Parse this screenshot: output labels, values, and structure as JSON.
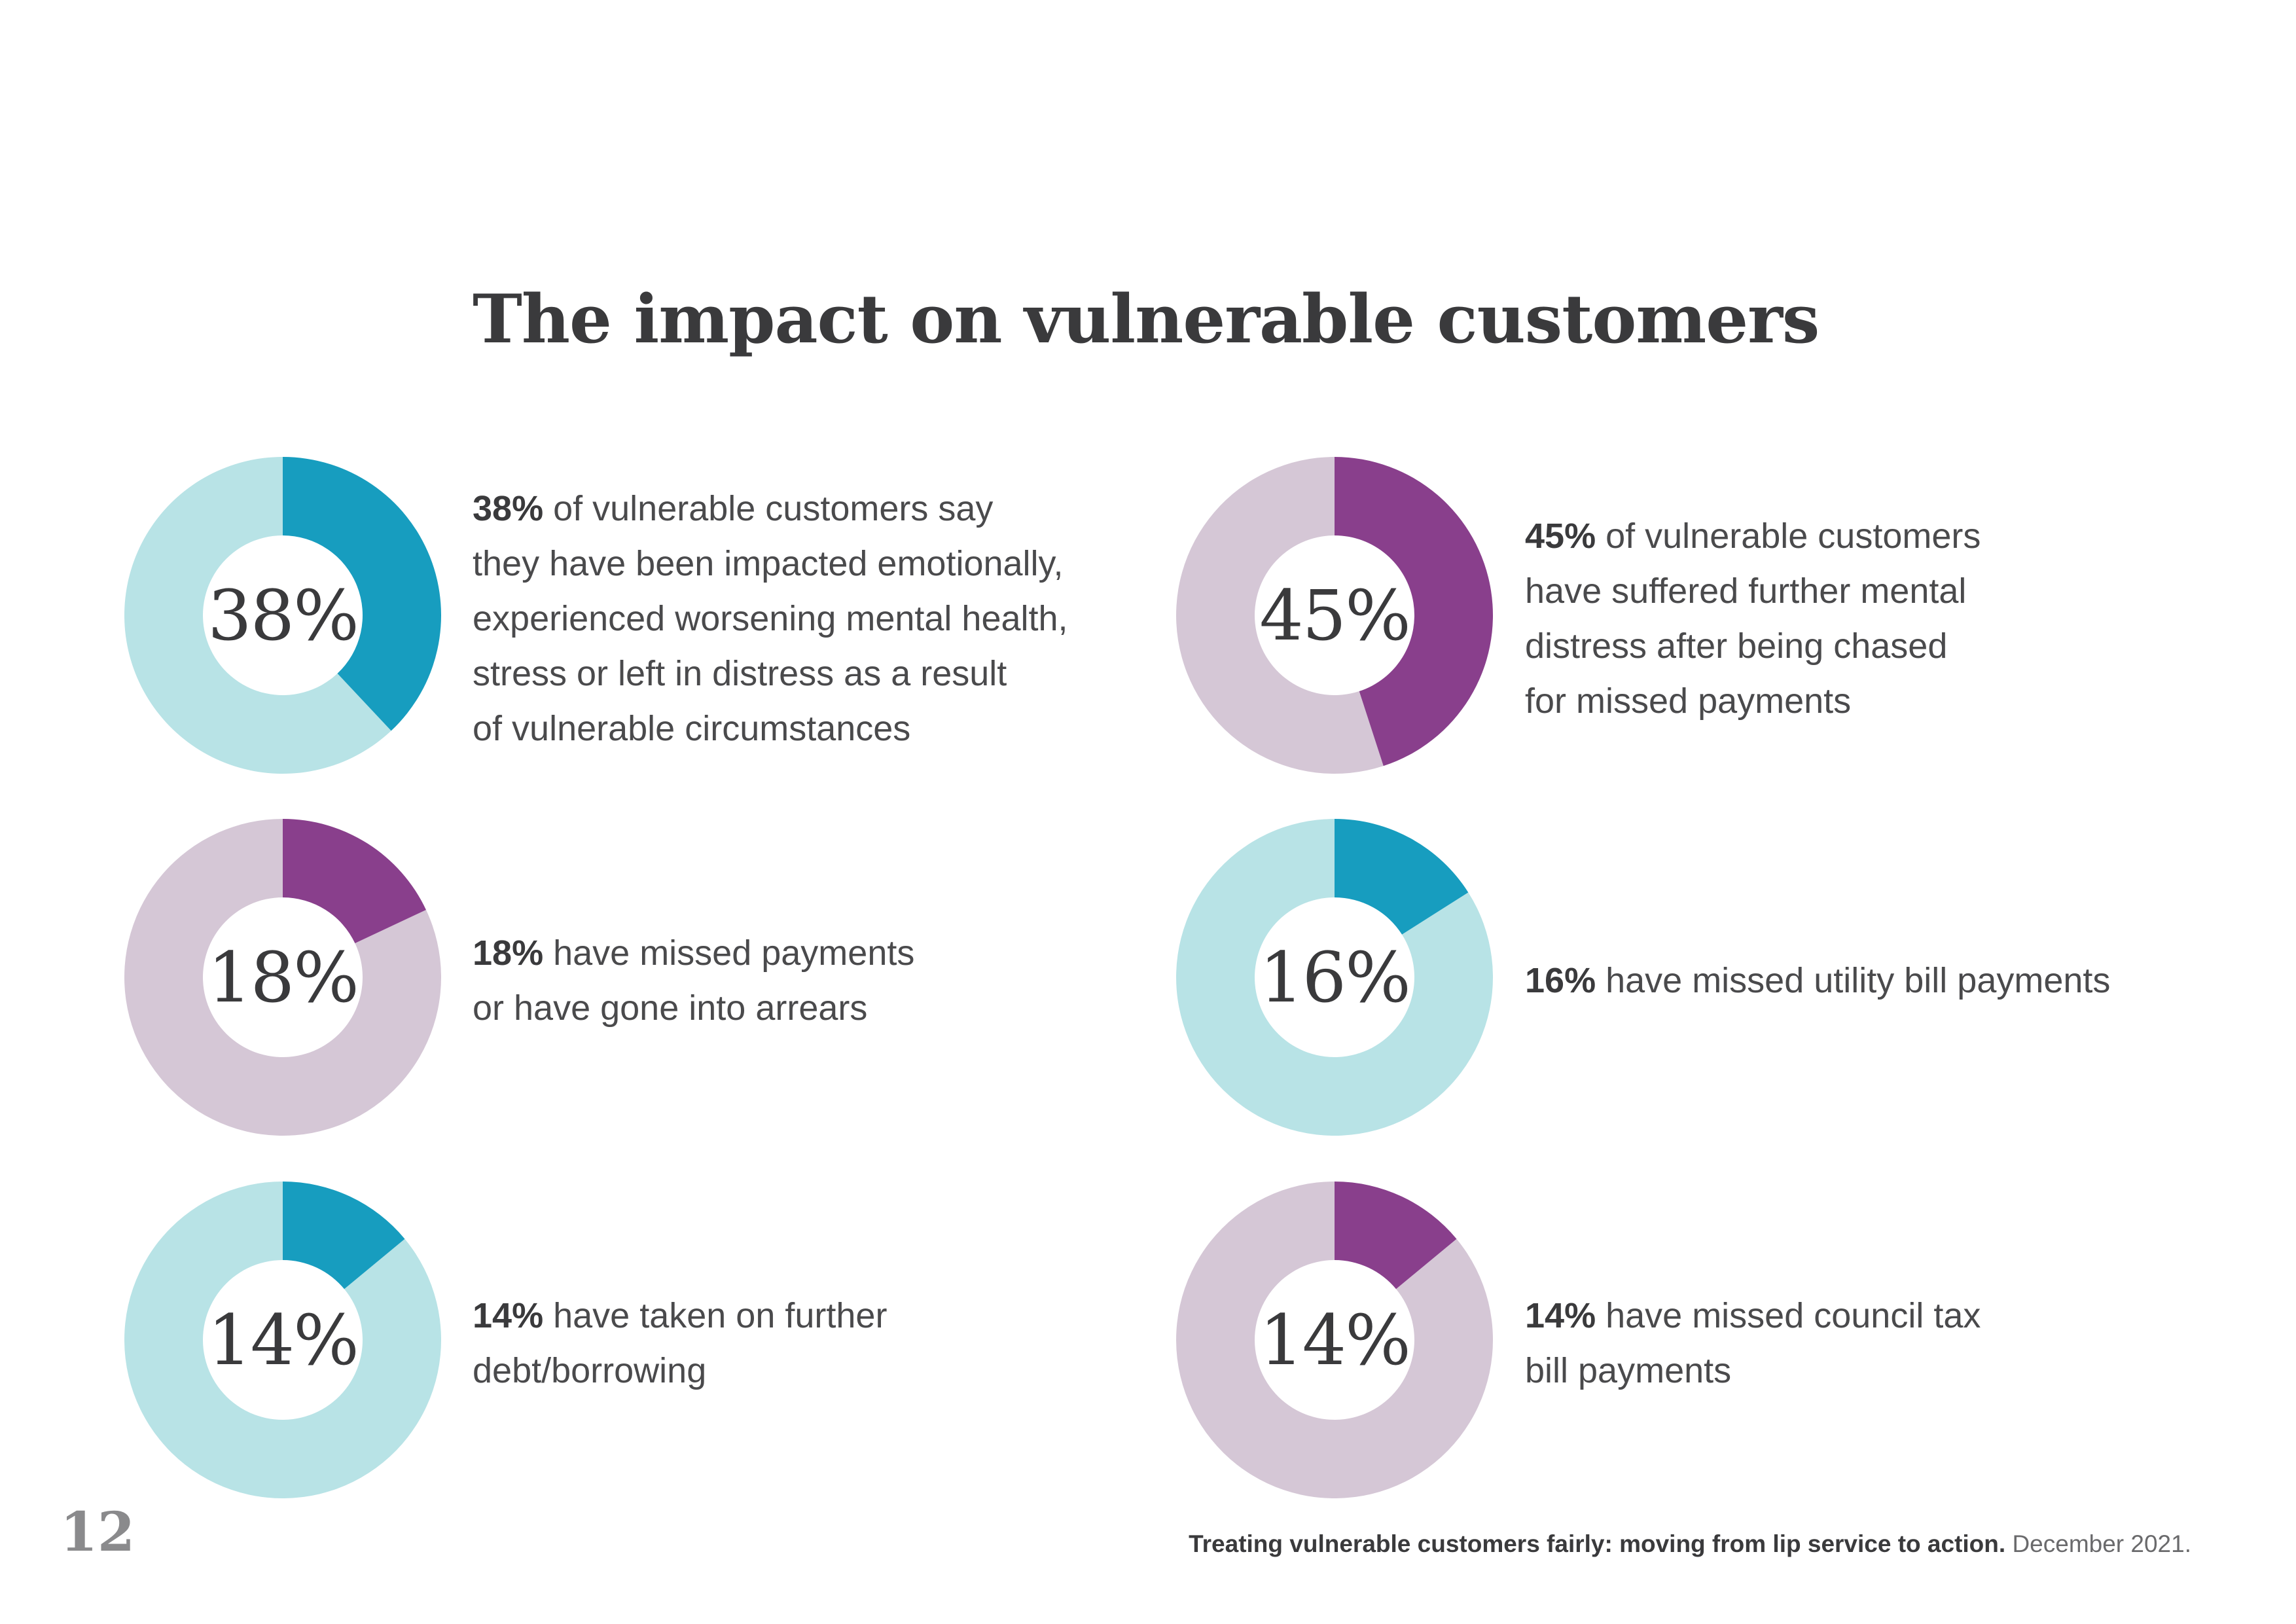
{
  "page": {
    "title": "The impact on vulnerable customers",
    "page_number": "12",
    "footer_title": "Treating vulnerable customers fairly: moving from lip service to action.",
    "footer_date": "December 2021."
  },
  "colors": {
    "teal_dark": "#179dbf",
    "teal_light": "#b8e3e6",
    "purple_dark": "#893f8c",
    "purple_light": "#d5c7d6",
    "text": "#3a3a3c"
  },
  "chart_data": [
    {
      "type": "pie",
      "values": [
        38,
        62
      ],
      "center_label": "38%",
      "stat": "38%",
      "text_lines": [
        " of vulnerable customers say",
        "they have been impacted emotionally,",
        "experienced worsening mental health,",
        "stress or left in distress as a result",
        "of vulnerable circumstances"
      ],
      "palette": "teal"
    },
    {
      "type": "pie",
      "values": [
        45,
        55
      ],
      "center_label": "45%",
      "stat": "45%",
      "text_lines": [
        " of vulnerable customers",
        "have suffered further mental",
        "distress after being chased",
        "for missed payments"
      ],
      "palette": "purple"
    },
    {
      "type": "pie",
      "values": [
        18,
        82
      ],
      "center_label": "18%",
      "stat": "18%",
      "text_lines": [
        " have missed payments",
        "or have gone into arrears"
      ],
      "palette": "purple"
    },
    {
      "type": "pie",
      "values": [
        16,
        84
      ],
      "center_label": "16%",
      "stat": "16%",
      "text_lines": [
        " have missed utility bill payments"
      ],
      "palette": "teal"
    },
    {
      "type": "pie",
      "values": [
        14,
        86
      ],
      "center_label": "14%",
      "stat": "14%",
      "text_lines": [
        " have taken on further",
        "debt/borrowing"
      ],
      "palette": "teal"
    },
    {
      "type": "pie",
      "values": [
        14,
        86
      ],
      "center_label": "14%",
      "stat": "14%",
      "text_lines": [
        " have missed council tax",
        "bill payments"
      ],
      "palette": "purple"
    }
  ]
}
